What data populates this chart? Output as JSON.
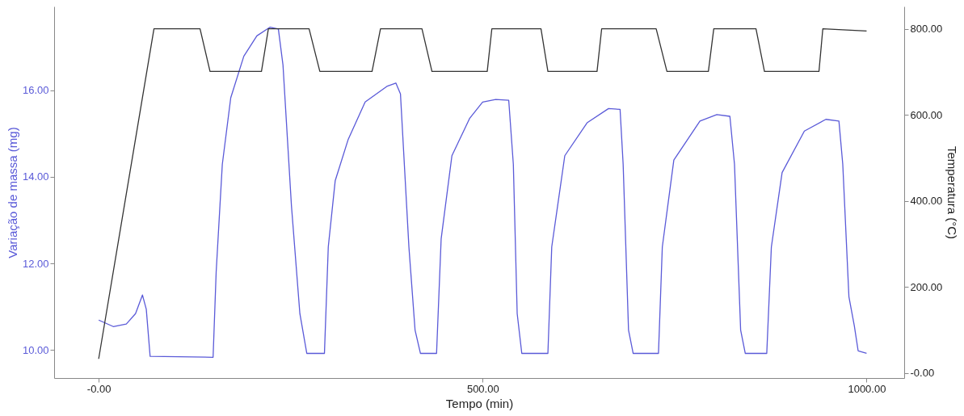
{
  "chart_data": {
    "type": "line",
    "xlabel": "Tempo (min)",
    "ylabel": "Variação de massa (mg)",
    "y2label": "Temperatura (°C)",
    "xlim": [
      -58,
      1049
    ],
    "ylim": [
      9.35,
      17.94
    ],
    "y2lim": [
      -11.6,
      852
    ],
    "xticks": [
      {
        "value": 0,
        "label": "-0.00"
      },
      {
        "value": 500,
        "label": "500.00"
      },
      {
        "value": 1000,
        "label": "1000.00"
      }
    ],
    "yticks": [
      {
        "value": 10,
        "label": "10.00"
      },
      {
        "value": 12,
        "label": "12.00"
      },
      {
        "value": 14,
        "label": "14.00"
      },
      {
        "value": 16,
        "label": "16.00"
      }
    ],
    "y2ticks": [
      {
        "value": 0,
        "label": "-0.00"
      },
      {
        "value": 200,
        "label": "200.00"
      },
      {
        "value": 400,
        "label": "400.00"
      },
      {
        "value": 600,
        "label": "600.00"
      },
      {
        "value": 800,
        "label": "800.00"
      }
    ],
    "grid": false,
    "line_style": "solid",
    "marker": "none",
    "series": [
      {
        "color": "#5a5ad8",
        "x": [
          0,
          19,
          36,
          48,
          57,
          62,
          67,
          149,
          153,
          161,
          172,
          189,
          206,
          223,
          234,
          240,
          251,
          262,
          271,
          294,
          299,
          308,
          325,
          347,
          376,
          387,
          393,
          404,
          412,
          419,
          440,
          446,
          460,
          483,
          500,
          517,
          534,
          540,
          545,
          551,
          585,
          590,
          607,
          636,
          664,
          679,
          683,
          690,
          696,
          729,
          734,
          749,
          783,
          805,
          822,
          828,
          836,
          842,
          870,
          876,
          890,
          919,
          947,
          964,
          969,
          977,
          984,
          989,
          1000
        ],
        "values": [
          10.69,
          10.54,
          10.6,
          10.84,
          11.27,
          10.94,
          9.85,
          9.83,
          11.8,
          14.29,
          15.83,
          16.79,
          17.26,
          17.46,
          17.42,
          16.59,
          13.34,
          10.84,
          9.92,
          9.92,
          12.38,
          13.91,
          14.87,
          15.73,
          16.1,
          16.17,
          15.92,
          12.38,
          10.46,
          9.92,
          9.92,
          12.57,
          14.49,
          15.35,
          15.73,
          15.79,
          15.77,
          14.29,
          10.84,
          9.92,
          9.92,
          12.38,
          14.49,
          15.25,
          15.58,
          15.56,
          14.29,
          10.46,
          9.92,
          9.92,
          12.38,
          14.39,
          15.29,
          15.44,
          15.4,
          14.29,
          10.46,
          9.92,
          9.92,
          12.38,
          14.1,
          15.06,
          15.33,
          15.29,
          14.29,
          11.23,
          10.56,
          9.98,
          9.92
        ]
      },
      {
        "color": "#333333",
        "axis": "y2",
        "x": [
          0,
          72,
          132,
          145,
          212,
          221,
          274,
          288,
          356,
          367,
          421,
          434,
          506,
          512,
          576,
          585,
          649,
          655,
          726,
          740,
          794,
          801,
          856,
          867,
          938,
          943,
          1000
        ],
        "values": [
          33,
          800,
          800,
          701,
          701,
          800,
          800,
          701,
          701,
          800,
          800,
          701,
          701,
          800,
          800,
          701,
          701,
          800,
          800,
          701,
          701,
          800,
          800,
          701,
          701,
          800,
          795
        ]
      }
    ]
  }
}
